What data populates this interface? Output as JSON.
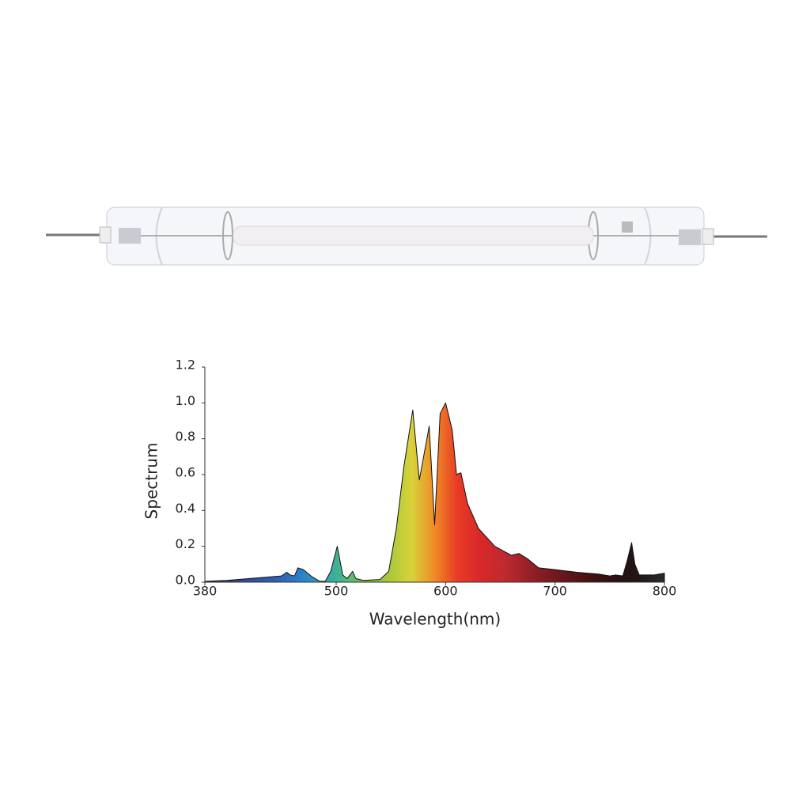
{
  "chart_data": {
    "type": "area",
    "x_label": "Wavelength(nm)",
    "y_label": "Spectrum",
    "x": [
      380,
      400,
      420,
      440,
      450,
      455,
      458,
      462,
      465,
      470,
      478,
      485,
      490,
      495,
      501,
      506,
      510,
      515,
      518,
      525,
      540,
      548,
      555,
      562,
      570,
      576,
      585,
      590,
      595,
      600,
      606,
      610,
      614,
      620,
      630,
      645,
      660,
      667,
      675,
      685,
      700,
      720,
      740,
      750,
      755,
      762,
      766,
      770,
      773,
      777,
      790,
      800
    ],
    "series": [
      {
        "name": "Spectrum",
        "color": "#111111",
        "values": [
          0.005,
          0.01,
          0.02,
          0.03,
          0.035,
          0.055,
          0.04,
          0.035,
          0.08,
          0.07,
          0.03,
          0.005,
          0.005,
          0.06,
          0.2,
          0.04,
          0.02,
          0.06,
          0.02,
          0.01,
          0.015,
          0.06,
          0.3,
          0.65,
          0.96,
          0.57,
          0.87,
          0.32,
          0.94,
          1.0,
          0.85,
          0.6,
          0.61,
          0.44,
          0.3,
          0.2,
          0.15,
          0.16,
          0.13,
          0.08,
          0.07,
          0.055,
          0.045,
          0.035,
          0.04,
          0.035,
          0.12,
          0.22,
          0.1,
          0.04,
          0.04,
          0.05
        ]
      }
    ],
    "gradient_colors": [
      "#3a2a4a",
      "#3b3f7a",
      "#2e4e9e",
      "#2d5fb0",
      "#2a7ac8",
      "#2f9cb8",
      "#46b88a",
      "#7cc046",
      "#a8c83a",
      "#d8d23a",
      "#f08a26",
      "#e83a26",
      "#d8282a",
      "#c02a30",
      "#9a2228",
      "#7a1a20",
      "#5a1418",
      "#40100f",
      "#2a1010",
      "#201818",
      "#2a2a2a"
    ],
    "xlim": [
      380,
      800
    ],
    "xticks": [
      380,
      500,
      600,
      700,
      800
    ],
    "ylim": [
      0,
      1.2
    ],
    "yticks": [
      {
        "value": 0,
        "label": "0.0"
      },
      0.2,
      0.4,
      0.6,
      0.8,
      {
        "value": 1,
        "label": "1.0"
      },
      1.2
    ],
    "grid": false
  }
}
